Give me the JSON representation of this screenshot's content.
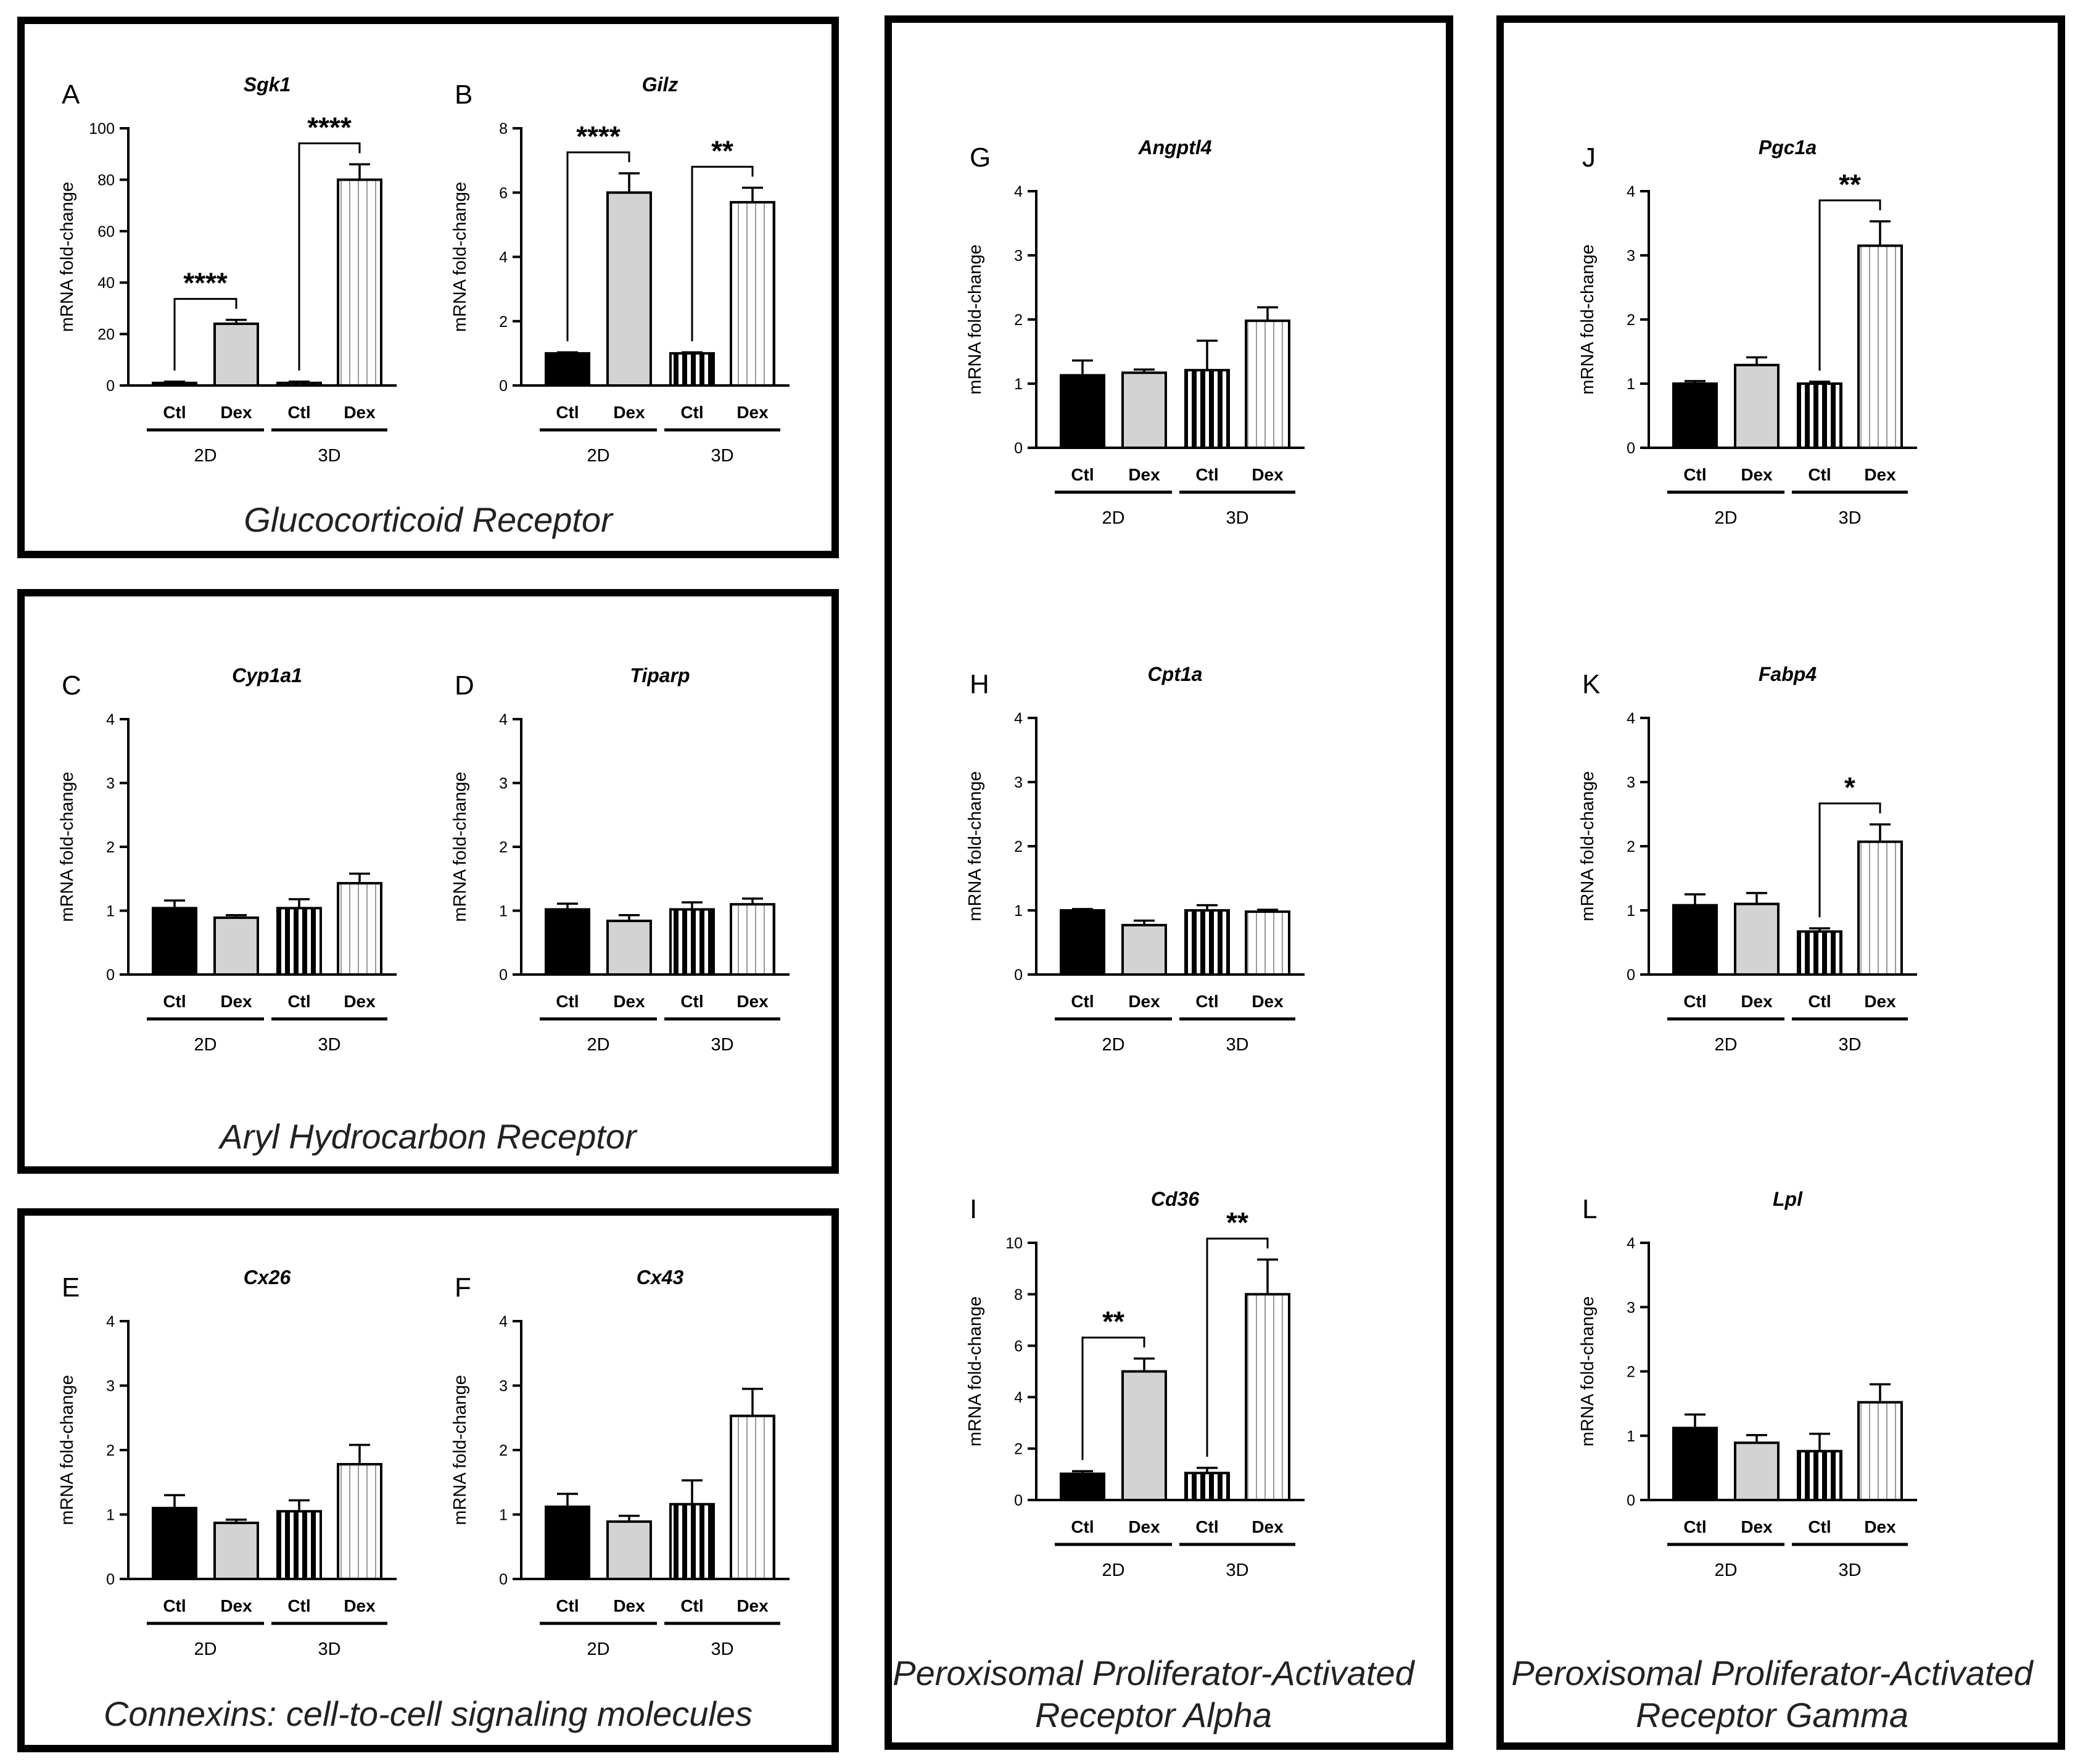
{
  "figure": {
    "boxes": [
      {
        "id": "gr",
        "caption": [
          "Glucocorticoid Receptor"
        ]
      },
      {
        "id": "ahr",
        "caption": [
          "Aryl Hydrocarbon Receptor"
        ]
      },
      {
        "id": "cx",
        "caption": [
          "Connexins: cell-to-cell signaling molecules"
        ]
      },
      {
        "id": "ppara",
        "caption": [
          "Peroxisomal Proliferator-Activated",
          "Receptor Alpha"
        ]
      },
      {
        "id": "pparg",
        "caption": [
          "Peroxisomal Proliferator-Activated",
          "Receptor Gamma"
        ]
      }
    ],
    "ylabel": "mRNA fold-change",
    "categories": [
      "Ctl",
      "Dex",
      "Ctl",
      "Dex"
    ],
    "groups": [
      "2D",
      "3D"
    ],
    "colors": {
      "black": "#000000",
      "grey": "#d3d3d3",
      "white": "#ffffff"
    }
  },
  "chart_data": [
    {
      "letter": "A",
      "title": "Sgk1",
      "type": "bar",
      "ylim": [
        0,
        100
      ],
      "yticks": [
        0,
        20,
        40,
        60,
        80,
        100
      ],
      "values": [
        1,
        24,
        1,
        80
      ],
      "errors": [
        0.5,
        1.5,
        0.5,
        6
      ],
      "significance": [
        {
          "from": 0,
          "to": 1,
          "label": "****"
        },
        {
          "from": 2,
          "to": 3,
          "label": "****"
        }
      ]
    },
    {
      "letter": "B",
      "title": "Gilz",
      "type": "bar",
      "ylim": [
        0,
        8
      ],
      "yticks": [
        0,
        2,
        4,
        6,
        8
      ],
      "values": [
        1,
        6,
        1,
        5.7
      ],
      "errors": [
        0.03,
        0.6,
        0.03,
        0.45
      ],
      "significance": [
        {
          "from": 0,
          "to": 1,
          "label": "****"
        },
        {
          "from": 2,
          "to": 3,
          "label": "**"
        }
      ]
    },
    {
      "letter": "C",
      "title": "Cyp1a1",
      "type": "bar",
      "ylim": [
        0,
        4
      ],
      "yticks": [
        0,
        1,
        2,
        3,
        4
      ],
      "values": [
        1.04,
        0.89,
        1.04,
        1.43
      ],
      "errors": [
        0.12,
        0.04,
        0.14,
        0.15
      ],
      "significance": []
    },
    {
      "letter": "D",
      "title": "Tiparp",
      "type": "bar",
      "ylim": [
        0,
        4
      ],
      "yticks": [
        0,
        1,
        2,
        3,
        4
      ],
      "values": [
        1.02,
        0.84,
        1.02,
        1.1
      ],
      "errors": [
        0.09,
        0.09,
        0.11,
        0.09
      ],
      "significance": []
    },
    {
      "letter": "E",
      "title": "Cx26",
      "type": "bar",
      "ylim": [
        0,
        4
      ],
      "yticks": [
        0,
        1,
        2,
        3,
        4
      ],
      "values": [
        1.1,
        0.87,
        1.05,
        1.78
      ],
      "errors": [
        0.2,
        0.05,
        0.17,
        0.3
      ],
      "significance": []
    },
    {
      "letter": "F",
      "title": "Cx43",
      "type": "bar",
      "ylim": [
        0,
        4
      ],
      "yticks": [
        0,
        1,
        2,
        3,
        4
      ],
      "values": [
        1.12,
        0.89,
        1.16,
        2.53
      ],
      "errors": [
        0.2,
        0.09,
        0.37,
        0.42
      ],
      "significance": []
    },
    {
      "letter": "G",
      "title": "Angptl4",
      "type": "bar",
      "ylim": [
        0,
        4
      ],
      "yticks": [
        0,
        1,
        2,
        3,
        4
      ],
      "values": [
        1.13,
        1.17,
        1.21,
        1.98
      ],
      "errors": [
        0.23,
        0.05,
        0.46,
        0.21
      ],
      "significance": []
    },
    {
      "letter": "H",
      "title": "Cpt1a",
      "type": "bar",
      "ylim": [
        0,
        4
      ],
      "yticks": [
        0,
        1,
        2,
        3,
        4
      ],
      "values": [
        1.0,
        0.77,
        1.0,
        0.98
      ],
      "errors": [
        0.02,
        0.07,
        0.08,
        0.03
      ],
      "significance": []
    },
    {
      "letter": "I",
      "title": "Cd36",
      "type": "bar",
      "ylim": [
        0,
        10
      ],
      "yticks": [
        0,
        2,
        4,
        6,
        8,
        10
      ],
      "values": [
        1.02,
        5,
        1.05,
        8
      ],
      "errors": [
        0.1,
        0.5,
        0.2,
        1.35
      ],
      "significance": [
        {
          "from": 0,
          "to": 1,
          "label": "**"
        },
        {
          "from": 2,
          "to": 3,
          "label": "**"
        }
      ]
    },
    {
      "letter": "J",
      "title": "Pgc1a",
      "type": "bar",
      "ylim": [
        0,
        4
      ],
      "yticks": [
        0,
        1,
        2,
        3,
        4
      ],
      "values": [
        1.0,
        1.29,
        1.0,
        3.15
      ],
      "errors": [
        0.04,
        0.12,
        0.03,
        0.38
      ],
      "significance": [
        {
          "from": 2,
          "to": 3,
          "label": "**"
        }
      ]
    },
    {
      "letter": "K",
      "title": "Fabp4",
      "type": "bar",
      "ylim": [
        0,
        4
      ],
      "yticks": [
        0,
        1,
        2,
        3,
        4
      ],
      "values": [
        1.08,
        1.1,
        0.67,
        2.07
      ],
      "errors": [
        0.17,
        0.17,
        0.05,
        0.27
      ],
      "significance": [
        {
          "from": 2,
          "to": 3,
          "label": "*"
        }
      ]
    },
    {
      "letter": "L",
      "title": "Lpl",
      "type": "bar",
      "ylim": [
        0,
        4
      ],
      "yticks": [
        0,
        1,
        2,
        3,
        4
      ],
      "values": [
        1.12,
        0.89,
        0.76,
        1.52
      ],
      "errors": [
        0.21,
        0.12,
        0.27,
        0.28
      ],
      "significance": []
    }
  ]
}
